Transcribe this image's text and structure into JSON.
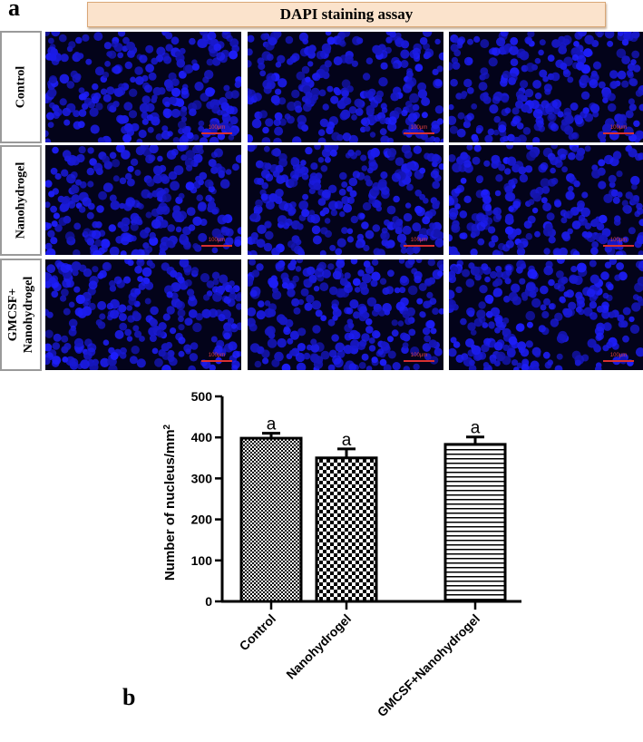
{
  "panel_a_label": "a",
  "panel_b_label": "b",
  "header_title": "DAPI staining assay",
  "row_labels": [
    "Control",
    "Nanohydrogel",
    "GMCSF+\nNanohydrogel"
  ],
  "scale_bar_label": "100μm",
  "chart_data": {
    "type": "bar",
    "categories": [
      "Control",
      "Nanohydrogel",
      "GMCSF+Nanohydrogel"
    ],
    "values": [
      398,
      350,
      383
    ],
    "errors": [
      12,
      22,
      18
    ],
    "annotations": [
      "a",
      "a",
      "a"
    ],
    "patterns": [
      "checker-fine",
      "checker-coarse",
      "horizontal-lines"
    ],
    "title": "",
    "xlabel": "",
    "ylabel": "Number of nucleus/mm",
    "ylabel_superscript": "2",
    "ylim": [
      0,
      500
    ],
    "yticks": [
      0,
      100,
      200,
      300,
      400,
      500
    ],
    "grid": false
  }
}
